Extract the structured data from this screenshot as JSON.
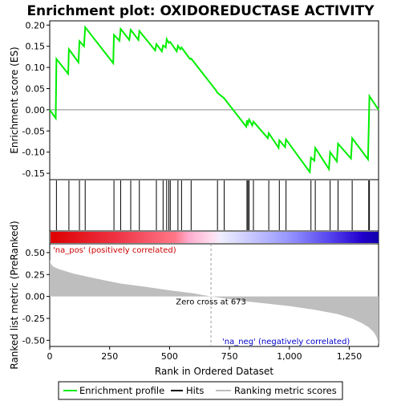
{
  "chart_data": {
    "type": "line",
    "title": "Enrichment plot: OXIDOREDUCTASE ACTIVITY",
    "panels": {
      "enrichment": {
        "ylabel": "Enrichment score (ES)",
        "ylim": [
          -0.165,
          0.21
        ],
        "yticks": [
          0.2,
          0.15,
          0.1,
          0.05,
          0.0,
          -0.05,
          -0.1,
          -0.15
        ],
        "ytick_labels": [
          "0.20",
          "0.15",
          "0.10",
          "0.05",
          "0.00",
          "-0.05",
          "-0.10",
          "-0.15"
        ],
        "series": [
          {
            "name": "Enrichment profile",
            "color": "#00ee00",
            "x": [
              0,
              25,
              28,
              77,
              80,
              120,
              124,
              143,
              148,
              265,
              268,
              291,
              296,
              332,
              338,
              370,
              374,
              440,
              445,
              468,
              473,
              484,
              488,
              497,
              503,
              530,
              535,
              545,
              550,
              585,
              590,
              695,
              700,
              722,
              728,
              820,
              823,
              827,
              832,
              845,
              850,
              910,
              914,
              955,
              958,
              982,
              986,
              1085,
              1090,
              1104,
              1108,
              1165,
              1170,
              1198,
              1203,
              1257,
              1262,
              1328,
              1331,
              1334,
              1372
            ],
            "y": [
              0.0,
              -0.02,
              0.12,
              0.085,
              0.143,
              0.112,
              0.162,
              0.15,
              0.195,
              0.11,
              0.177,
              0.163,
              0.191,
              0.165,
              0.189,
              0.165,
              0.186,
              0.14,
              0.155,
              0.138,
              0.152,
              0.147,
              0.167,
              0.158,
              0.16,
              0.138,
              0.151,
              0.143,
              0.147,
              0.12,
              0.121,
              0.045,
              0.04,
              0.03,
              0.027,
              -0.04,
              -0.025,
              -0.033,
              -0.023,
              -0.037,
              -0.028,
              -0.067,
              -0.055,
              -0.09,
              -0.072,
              -0.088,
              -0.07,
              -0.147,
              -0.113,
              -0.12,
              -0.09,
              -0.14,
              -0.1,
              -0.122,
              -0.08,
              -0.115,
              -0.067,
              -0.117,
              -0.045,
              0.032,
              0.0
            ]
          }
        ]
      },
      "hits": {
        "label": "Hits",
        "positions": [
          28,
          80,
          124,
          148,
          268,
          296,
          338,
          374,
          445,
          473,
          488,
          497,
          503,
          535,
          550,
          590,
          700,
          728,
          823,
          827,
          832,
          850,
          914,
          958,
          986,
          1090,
          1108,
          1170,
          1203,
          1262,
          1331,
          1334
        ]
      },
      "ranking": {
        "ylabel": "Ranked list metric (PreRanked)",
        "ylim": [
          -0.57,
          0.6
        ],
        "yticks": [
          0.5,
          0.25,
          0.0,
          -0.25,
          -0.5
        ],
        "ytick_labels": [
          "0.50",
          "0.25",
          "0.00",
          "-0.25",
          "-0.50"
        ],
        "series_name": "Ranking metric scores",
        "color": "#bebebe",
        "x": [
          0,
          5,
          15,
          40,
          100,
          200,
          300,
          400,
          500,
          600,
          673,
          800,
          900,
          1000,
          1100,
          1200,
          1260,
          1300,
          1330,
          1350,
          1362,
          1368,
          1372
        ],
        "y": [
          0.42,
          0.37,
          0.34,
          0.31,
          0.26,
          0.2,
          0.145,
          0.11,
          0.07,
          0.035,
          0.0,
          -0.05,
          -0.08,
          -0.11,
          -0.15,
          -0.2,
          -0.25,
          -0.3,
          -0.35,
          -0.4,
          -0.45,
          -0.5,
          -0.55
        ],
        "zero_cross_label": "Zero cross at 673",
        "zero_cross": 673,
        "pos_label": "'na_pos' (positively correlated)",
        "neg_label": "'na_neg' (negatively correlated)"
      }
    },
    "xlabel": "Rank in Ordered Dataset",
    "xlim": [
      0,
      1372
    ],
    "xticks": [
      0,
      250,
      500,
      750,
      1000,
      1250
    ],
    "xtick_labels": [
      "0",
      "250",
      "500",
      "750",
      "1,000",
      "1,250"
    ],
    "legend": {
      "placement": "bottom",
      "entries": [
        {
          "label": "Enrichment profile",
          "color": "#00ee00"
        },
        {
          "label": "Hits",
          "color": "#000000"
        },
        {
          "label": "Ranking metric scores",
          "color": "#bebebe"
        }
      ]
    }
  }
}
